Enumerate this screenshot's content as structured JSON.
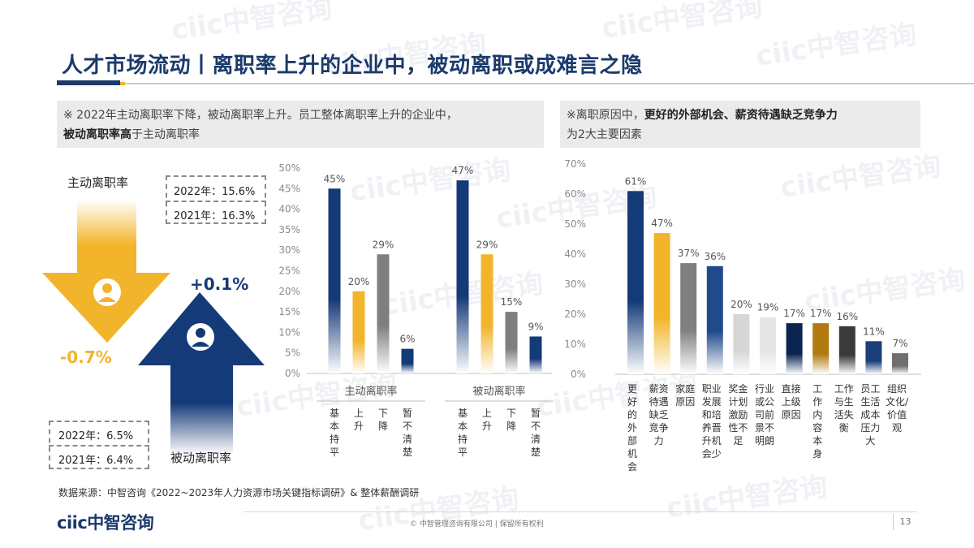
{
  "slide": {
    "title": "人才市场流动丨离职率上升的企业中，被动离职或成难言之隐",
    "note_left": {
      "line1": "※ 2022年主动离职率下降，被动离职率上升。员工整体离职率上升的企业中，",
      "line2_bold": "被动离职率高",
      "line2_rest": "于主动离职率"
    },
    "note_right": {
      "line1_prefix": "※离职原因中，",
      "line1_bold": "更好的外部机会、薪资待遇缺乏竞争力",
      "line2": "为2大主要因素"
    },
    "source": "数据来源：中智咨询《2022~2023年人力资源市场关键指标调研》& 整体薪酬调研",
    "copyright": "© 中智管理咨询有限公司 | 保留所有权利",
    "page_number": "13",
    "logo_text": "ciic中智咨询",
    "watermark": "ciic中智咨询"
  },
  "infographic": {
    "voluntary": {
      "label": "主动离职率",
      "rows": [
        "2022年：15.6%",
        "2021年：16.3%"
      ],
      "change": "-0.7%",
      "color": "#f2b42a"
    },
    "involuntary": {
      "label": "被动离职率",
      "rows": [
        "2022年：6.5%",
        "2021年：6.4%"
      ],
      "change": "+0.1%",
      "color": "#153a78"
    }
  },
  "chart_data": [
    {
      "type": "bar",
      "ylim": [
        0,
        50
      ],
      "yticks": [
        "0%",
        "5%",
        "10%",
        "15%",
        "20%",
        "25%",
        "30%",
        "35%",
        "40%",
        "45%",
        "50%"
      ],
      "categories": [
        "基本持平",
        "上升",
        "下降",
        "暂不清楚"
      ],
      "groups": [
        {
          "name": "主动离职率",
          "values": [
            45,
            20,
            29,
            6
          ],
          "labels": [
            "45%",
            "20%",
            "29%",
            "6%"
          ]
        },
        {
          "name": "被动离职率",
          "values": [
            47,
            29,
            15,
            9
          ],
          "labels": [
            "47%",
            "29%",
            "15%",
            "9%"
          ]
        }
      ],
      "colors": [
        "#153a78",
        "#f2b42a",
        "#7f7f7f",
        "#153a78"
      ]
    },
    {
      "type": "bar",
      "ylim": [
        0,
        70
      ],
      "yticks": [
        "0%",
        "10%",
        "20%",
        "30%",
        "40%",
        "50%",
        "60%",
        "70%"
      ],
      "categories": [
        "更好的外部机会",
        "薪资待遇缺乏竞争力",
        "家庭原因",
        "职业发展和培养晋升机会少",
        "奖金计划激励性不足",
        "行业或公司前景不明朗",
        "直接上级原因",
        "工作内容本身",
        "工作与生活失衡",
        "员工生活成本压力大",
        "组织文化/价值观"
      ],
      "category_lines": [
        [
          "更",
          "好",
          "的",
          "外",
          "部",
          "机",
          "会"
        ],
        [
          "薪资",
          "待遇",
          "缺乏",
          "竞争",
          "力"
        ],
        [
          "家庭",
          "原因"
        ],
        [
          "职业",
          "发展",
          "和培",
          "养晋",
          "升机",
          "会少"
        ],
        [
          "奖金",
          "计划",
          "激励",
          "性不",
          "足"
        ],
        [
          "行业",
          "或公",
          "司前",
          "景不",
          "明朗"
        ],
        [
          "直接",
          "上级",
          "原因"
        ],
        [
          "工",
          "作",
          "内",
          "容",
          "本",
          "身"
        ],
        [
          "工作",
          "与生",
          "活失",
          "衡"
        ],
        [
          "员工",
          "生活",
          "成本",
          "压力",
          "大"
        ],
        [
          "组织",
          "文化/",
          "价值",
          "观"
        ]
      ],
      "values": [
        61,
        47,
        37,
        36,
        20,
        19,
        17,
        17,
        16,
        11,
        7
      ],
      "labels": [
        "61%",
        "47%",
        "37%",
        "36%",
        "20%",
        "19%",
        "17%",
        "17%",
        "16%",
        "11%",
        "7%"
      ],
      "colors": [
        "#153a78",
        "#f2b42a",
        "#7f7f7f",
        "#1f4a8c",
        "#d6d6d6",
        "#e6e6e6",
        "#0c2550",
        "#b07a10",
        "#3a3a3a",
        "#1c3f7a",
        "#6f6f6f"
      ]
    }
  ]
}
